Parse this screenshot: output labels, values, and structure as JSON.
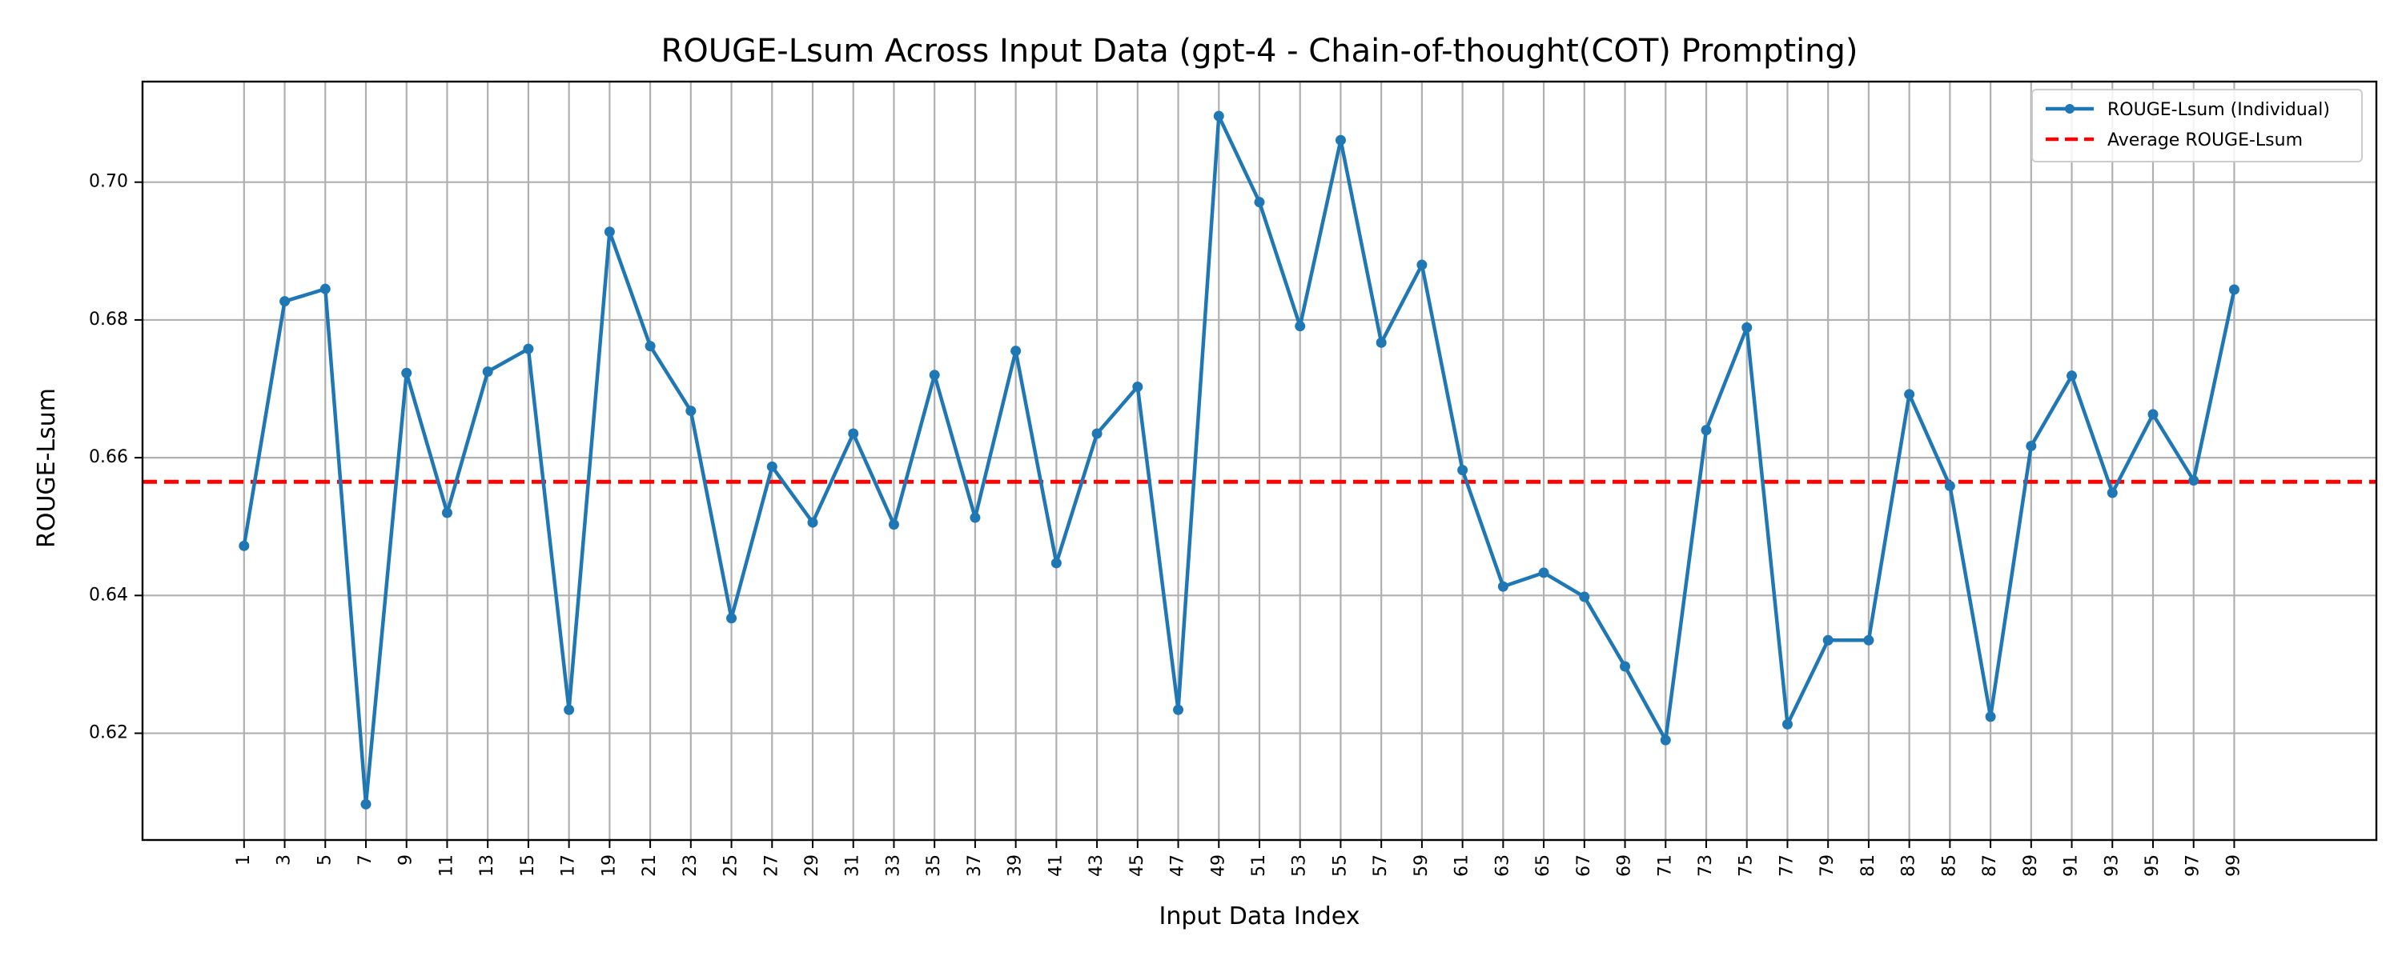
{
  "chart_data": {
    "type": "line",
    "title": "ROUGE-Lsum Across Input Data (gpt-4 - Chain-of-thought(COT) Prompting)",
    "xlabel": "Input Data Index",
    "ylabel": "ROUGE-Lsum",
    "x": [
      1,
      3,
      5,
      7,
      9,
      11,
      13,
      15,
      17,
      19,
      21,
      23,
      25,
      27,
      29,
      31,
      33,
      35,
      37,
      39,
      41,
      43,
      45,
      47,
      49,
      51,
      53,
      55,
      57,
      59,
      61,
      63,
      65,
      67,
      69,
      71,
      73,
      75,
      77,
      79,
      81,
      83,
      85,
      87,
      89,
      91,
      93,
      95,
      97,
      99
    ],
    "xticks": [
      "1",
      "3",
      "5",
      "7",
      "9",
      "11",
      "13",
      "15",
      "17",
      "19",
      "21",
      "23",
      "25",
      "27",
      "29",
      "31",
      "33",
      "35",
      "37",
      "39",
      "41",
      "43",
      "45",
      "47",
      "49",
      "51",
      "53",
      "55",
      "57",
      "59",
      "61",
      "63",
      "65",
      "67",
      "69",
      "71",
      "73",
      "75",
      "77",
      "79",
      "81",
      "83",
      "85",
      "87",
      "89",
      "91",
      "93",
      "95",
      "97",
      "99"
    ],
    "yticks": [
      "0.62",
      "0.64",
      "0.66",
      "0.68",
      "0.70"
    ],
    "ytick_values": [
      0.62,
      0.64,
      0.66,
      0.68,
      0.7
    ],
    "xlim": [
      -4,
      106
    ],
    "ylim": [
      0.6045,
      0.7146
    ],
    "series": [
      {
        "name": "ROUGE-Lsum (Individual)",
        "color": "#1f77b4",
        "values": [
          0.6472,
          0.6827,
          0.6845,
          0.6097,
          0.6723,
          0.652,
          0.6725,
          0.6758,
          0.6234,
          0.6928,
          0.6762,
          0.6668,
          0.6367,
          0.6587,
          0.6506,
          0.6635,
          0.6503,
          0.672,
          0.6513,
          0.6755,
          0.6447,
          0.6635,
          0.6703,
          0.6234,
          0.7096,
          0.6971,
          0.6791,
          0.7061,
          0.6767,
          0.688,
          0.6582,
          0.6413,
          0.6433,
          0.6398,
          0.6297,
          0.619,
          0.664,
          0.6789,
          0.6213,
          0.6335,
          0.6335,
          0.6692,
          0.6559,
          0.6224,
          0.6617,
          0.6719,
          0.6549,
          0.6663,
          0.6567,
          0.6844
        ]
      }
    ],
    "average": {
      "name": "Average ROUGE-Lsum",
      "value": 0.6565,
      "color": "#ff0000"
    },
    "grid": true,
    "legend_position": "top-right"
  }
}
